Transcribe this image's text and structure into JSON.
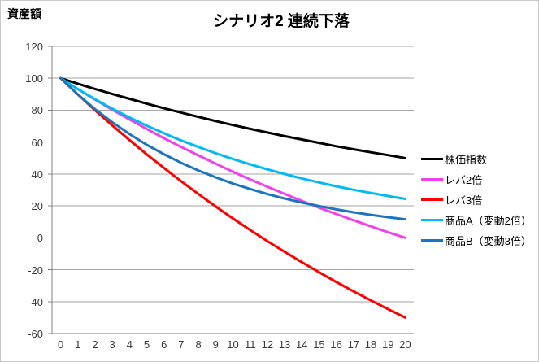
{
  "chart_data": {
    "type": "line",
    "title": "シナリオ2 連続下落",
    "ylabel": "資産額",
    "xlabel": "",
    "x": [
      0,
      1,
      2,
      3,
      4,
      5,
      6,
      7,
      8,
      9,
      10,
      11,
      12,
      13,
      14,
      15,
      16,
      17,
      18,
      19,
      20
    ],
    "series": [
      {
        "key": "index",
        "name": "株価指数",
        "color": "#000000",
        "values": [
          100,
          96.6,
          93.3,
          90.1,
          87.1,
          84.1,
          81.2,
          78.5,
          75.8,
          73.2,
          70.7,
          68.3,
          66.0,
          63.7,
          61.6,
          59.5,
          57.4,
          55.5,
          53.6,
          51.8,
          50.0
        ]
      },
      {
        "key": "lev2x",
        "name": "レバ2倍",
        "color": "#F042E8",
        "values": [
          100,
          93.2,
          86.6,
          80.3,
          74.1,
          68.2,
          62.4,
          56.9,
          51.6,
          46.4,
          41.4,
          36.6,
          32.0,
          27.5,
          23.1,
          18.9,
          14.9,
          11.0,
          7.2,
          3.5,
          0.0
        ]
      },
      {
        "key": "lev3x",
        "name": "レバ3倍",
        "color": "#FF0000",
        "values": [
          100,
          89.8,
          79.9,
          70.4,
          61.2,
          52.3,
          43.7,
          35.4,
          27.4,
          19.6,
          12.1,
          4.9,
          -2.1,
          -8.8,
          -15.3,
          -21.6,
          -27.7,
          -33.6,
          -39.2,
          -44.7,
          -50.0
        ]
      },
      {
        "key": "productA",
        "name": "商品A（変動2倍）",
        "color": "#00B9F2",
        "values": [
          100,
          93.2,
          86.8,
          80.9,
          75.4,
          70.3,
          65.5,
          61.0,
          56.9,
          53.0,
          49.4,
          46.0,
          42.9,
          40.0,
          37.2,
          34.7,
          32.3,
          30.1,
          28.1,
          26.2,
          24.4
        ]
      },
      {
        "key": "productB",
        "name": "商品B（変動3倍）",
        "color": "#1C75BC",
        "values": [
          100,
          89.8,
          80.6,
          72.4,
          65.0,
          58.3,
          52.4,
          47.0,
          42.2,
          37.9,
          34.0,
          30.6,
          27.4,
          24.6,
          22.1,
          19.9,
          17.8,
          16.0,
          14.4,
          12.9,
          11.6
        ]
      }
    ],
    "ylim": [
      -60,
      120
    ],
    "ytick_step": 20,
    "grid": true,
    "legend_position": "right"
  },
  "style": {
    "grid_color": "#A6A6A6",
    "axis_color": "#808080",
    "background": "#FFFFFF"
  }
}
